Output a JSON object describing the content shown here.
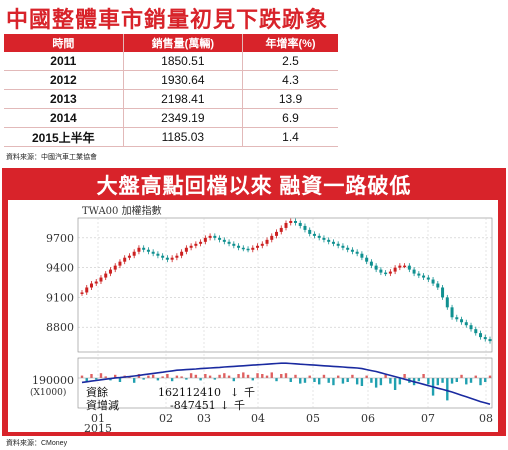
{
  "headline": "中國整體車市銷量初見下跌跡象",
  "sales_table": {
    "headers": [
      "時間",
      "銷售量(萬輛)",
      "年增率(%)"
    ],
    "rows": [
      {
        "period": "2011",
        "sales": "1850.51",
        "growth": "2.5"
      },
      {
        "period": "2012",
        "sales": "1930.64",
        "growth": "4.3"
      },
      {
        "period": "2013",
        "sales": "2198.41",
        "growth": "13.9"
      },
      {
        "period": "2014",
        "sales": "2349.19",
        "growth": "6.9"
      },
      {
        "period": "2015上半年",
        "sales": "1185.03",
        "growth": "1.4"
      }
    ]
  },
  "sales_source": "資料來源：中國汽車工業協會",
  "chart_headline": "大盤高點回檔以來 融資一路破低",
  "chart_source": "資料來源：CMoney",
  "chart_data": {
    "type": "line",
    "upper": {
      "label": "TWA00 加權指數",
      "y_ticks": [
        9700,
        9400,
        9100,
        8800
      ],
      "ylim": [
        8550,
        9900
      ]
    },
    "lower": {
      "y_tick": "190000",
      "unit": "(X1000)",
      "legend": [
        {
          "name": "資餘",
          "value": "162112410",
          "arrow": "↓",
          "unit": "千"
        },
        {
          "name": "資增減",
          "value": "-847451",
          "arrow": "↓",
          "unit": "千"
        }
      ]
    },
    "x_labels": [
      "01",
      "02",
      "03",
      "04",
      "05",
      "06",
      "07",
      "08"
    ],
    "x_year": "2015",
    "index_series": [
      9150,
      9200,
      9240,
      9260,
      9300,
      9340,
      9380,
      9420,
      9460,
      9500,
      9520,
      9560,
      9600,
      9580,
      9560,
      9540,
      9520,
      9500,
      9480,
      9500,
      9520,
      9560,
      9600,
      9620,
      9640,
      9660,
      9700,
      9720,
      9700,
      9680,
      9660,
      9640,
      9620,
      9600,
      9590,
      9580,
      9600,
      9620,
      9640,
      9680,
      9720,
      9760,
      9800,
      9850,
      9870,
      9850,
      9820,
      9780,
      9740,
      9720,
      9700,
      9680,
      9660,
      9640,
      9620,
      9600,
      9580,
      9560,
      9540,
      9500,
      9460,
      9420,
      9380,
      9350,
      9340,
      9360,
      9400,
      9420,
      9420,
      9380,
      9340,
      9320,
      9300,
      9280,
      9240,
      9200,
      9100,
      9000,
      8900,
      8880,
      8850,
      8820,
      8780,
      8740,
      8700,
      8680,
      8660
    ],
    "margin_series": [
      0.7,
      0.68,
      0.66,
      0.64,
      0.62,
      0.6,
      0.58,
      0.56,
      0.55,
      0.53,
      0.52,
      0.5,
      0.48,
      0.46,
      0.44,
      0.42,
      0.4,
      0.38,
      0.36,
      0.34,
      0.32,
      0.31,
      0.3,
      0.29,
      0.28,
      0.27,
      0.26,
      0.25,
      0.24,
      0.23,
      0.22,
      0.21,
      0.2,
      0.19,
      0.18,
      0.17,
      0.16,
      0.15,
      0.14,
      0.13,
      0.12,
      0.11,
      0.1,
      0.1,
      0.11,
      0.12,
      0.13,
      0.14,
      0.15,
      0.16,
      0.17,
      0.18,
      0.19,
      0.2,
      0.21,
      0.22,
      0.23,
      0.24,
      0.25,
      0.27,
      0.3,
      0.33,
      0.36,
      0.4,
      0.44,
      0.48,
      0.52,
      0.56,
      0.6,
      0.64,
      0.68,
      0.72,
      0.76,
      0.8,
      0.84,
      0.88,
      0.92,
      0.96,
      1.0,
      1.05,
      1.1,
      1.15,
      1.2,
      1.25,
      1.3,
      1.34,
      1.38
    ],
    "change_bars": [
      0.3,
      -0.4,
      0.5,
      -0.2,
      0.6,
      0.2,
      -0.3,
      0.4,
      -0.5,
      0.3,
      0.2,
      -0.6,
      0.5,
      -0.2,
      0.3,
      0.4,
      -0.3,
      0.2,
      0.5,
      -0.4,
      0.3,
      0.2,
      -0.2,
      0.6,
      0.4,
      -0.3,
      0.5,
      0.3,
      -0.2,
      0.4,
      0.6,
      0.3,
      -0.4,
      0.5,
      0.7,
      0.4,
      -0.3,
      0.6,
      0.5,
      0.3,
      0.7,
      -0.4,
      0.5,
      0.6,
      -0.5,
      0.4,
      -0.7,
      -0.6,
      0.3,
      -0.5,
      -0.8,
      0.4,
      -0.6,
      -0.9,
      0.3,
      -0.7,
      -0.5,
      0.4,
      -0.8,
      -1.0,
      0.3,
      -0.6,
      -1.2,
      -0.9,
      0.4,
      -0.7,
      -1.5,
      -0.8,
      0.5,
      -0.6,
      -0.9,
      -0.4,
      0.5,
      -0.8,
      -2.2,
      -0.9,
      -0.6,
      -2.8,
      -0.7,
      -0.5,
      0.4,
      -0.8,
      -0.6,
      0.3,
      -0.9,
      -0.5,
      0.3
    ],
    "colors": {
      "index_line": "#1a2aa0",
      "margin_line": "#1a2aa0",
      "up_bar": "#e06060",
      "down_bar": "#20a0b0",
      "candle_up": "#cc2020",
      "candle_down": "#109090"
    }
  }
}
